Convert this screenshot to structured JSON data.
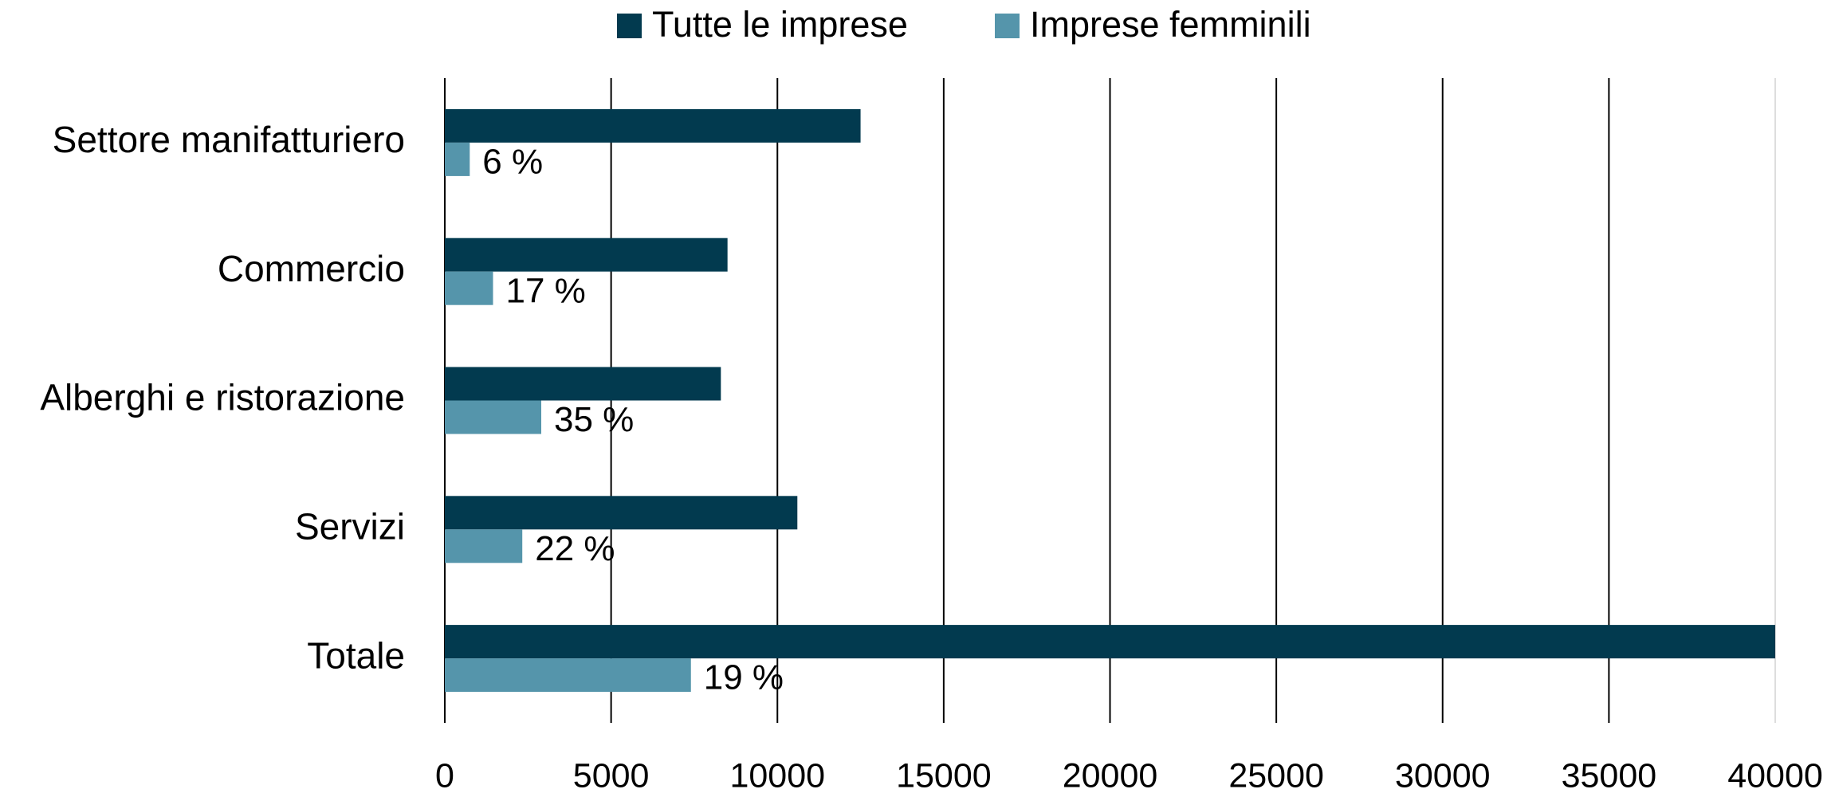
{
  "chart_data": {
    "type": "bar",
    "orientation": "horizontal",
    "categories": [
      "Settore manifatturiero",
      "Commercio",
      "Alberghi e ristorazione",
      "Servizi",
      "Totale"
    ],
    "series": [
      {
        "name": "Tutte le imprese",
        "color": "#023a4f",
        "values": [
          12500,
          8500,
          8300,
          10600,
          40000
        ]
      },
      {
        "name": "Imprese femminili",
        "color": "#5595ab",
        "values": [
          750,
          1450,
          2900,
          2330,
          7400
        ],
        "data_labels": [
          "6 %",
          "17 %",
          "35 %",
          "22 %",
          "19 %"
        ]
      }
    ],
    "xlim": [
      0,
      40000
    ],
    "xticks": [
      0,
      5000,
      10000,
      15000,
      20000,
      25000,
      30000,
      35000,
      40000
    ],
    "grid": true,
    "legend": "top"
  }
}
